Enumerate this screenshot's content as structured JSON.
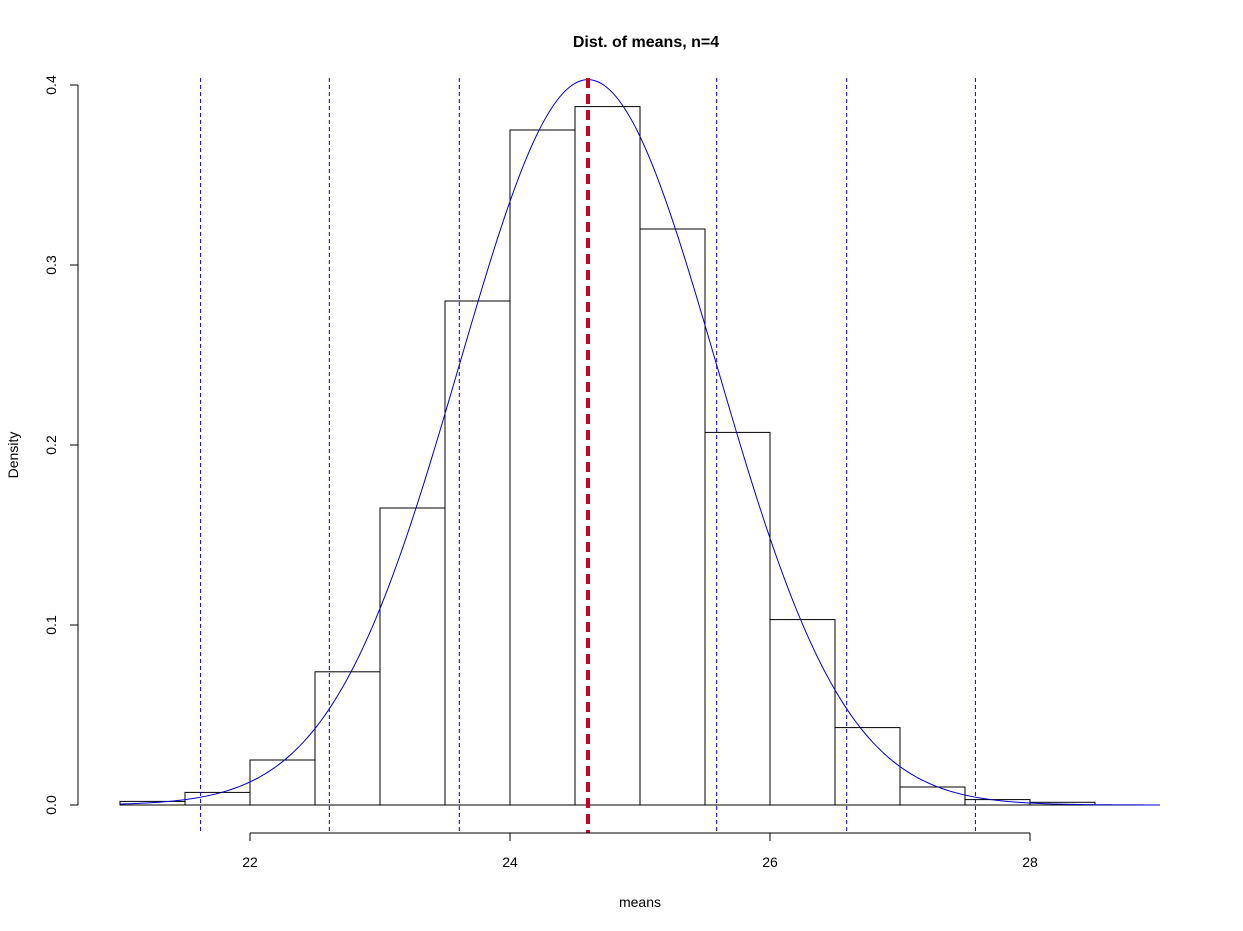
{
  "chart_data": {
    "type": "bar",
    "title": "Dist. of means, n=4",
    "xlabel": "means",
    "ylabel": "Density",
    "xlim": [
      21.0,
      29.0
    ],
    "ylim": [
      0,
      0.4
    ],
    "xticks": [
      "22",
      "24",
      "26",
      "28"
    ],
    "yticks": [
      "0.0",
      "0.1",
      "0.2",
      "0.3",
      "0.4"
    ],
    "bin_width": 0.5,
    "bins": [
      {
        "x0": 21.0,
        "x1": 21.5,
        "density": 0.002
      },
      {
        "x0": 21.5,
        "x1": 22.0,
        "density": 0.007
      },
      {
        "x0": 22.0,
        "x1": 22.5,
        "density": 0.025
      },
      {
        "x0": 22.5,
        "x1": 23.0,
        "density": 0.074
      },
      {
        "x0": 23.0,
        "x1": 23.5,
        "density": 0.165
      },
      {
        "x0": 23.5,
        "x1": 24.0,
        "density": 0.28
      },
      {
        "x0": 24.0,
        "x1": 24.5,
        "density": 0.375
      },
      {
        "x0": 24.5,
        "x1": 25.0,
        "density": 0.388
      },
      {
        "x0": 25.0,
        "x1": 25.5,
        "density": 0.32
      },
      {
        "x0": 25.5,
        "x1": 26.0,
        "density": 0.207
      },
      {
        "x0": 26.0,
        "x1": 26.5,
        "density": 0.103
      },
      {
        "x0": 26.5,
        "x1": 27.0,
        "density": 0.043
      },
      {
        "x0": 27.0,
        "x1": 27.5,
        "density": 0.01
      },
      {
        "x0": 27.5,
        "x1": 28.0,
        "density": 0.003
      },
      {
        "x0": 28.0,
        "x1": 28.5,
        "density": 0.0015
      }
    ],
    "normal_curve": {
      "mean": 24.6,
      "sd": 0.99,
      "color": "#0000CC"
    },
    "mean_line": {
      "x": 24.6,
      "color": "#CC0022"
    },
    "sd_lines": {
      "x": [
        21.62,
        22.61,
        23.61,
        25.59,
        26.59,
        27.58
      ],
      "color": "#0000CC"
    },
    "grid": false,
    "legend": "none"
  }
}
